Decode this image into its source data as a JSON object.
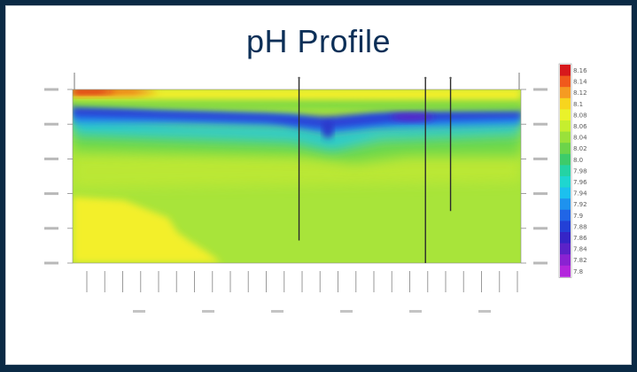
{
  "chart_data": {
    "type": "heatmap",
    "title": "pH Profile",
    "colorbar": {
      "labels": [
        "8.16",
        "8.14",
        "8.12",
        "8.1",
        "8.08",
        "8.06",
        "8.04",
        "8.02",
        "8.0",
        "7.98",
        "7.96",
        "7.94",
        "7.92",
        "7.9",
        "7.88",
        "7.86",
        "7.84",
        "7.82",
        "7.8"
      ],
      "min": 7.8,
      "max": 8.16,
      "colors": [
        "#d7191c",
        "#f05a1c",
        "#f59b22",
        "#f7d51e",
        "#eaf22a",
        "#c6ee2e",
        "#9ae13a",
        "#6cd44a",
        "#3dcb6a",
        "#24d3a4",
        "#1ed6d0",
        "#1cc0ee",
        "#1e92ee",
        "#2065e6",
        "#2340d6",
        "#3525c6",
        "#5b22c8",
        "#8a22d2",
        "#b326dc"
      ]
    },
    "profiles": [
      {
        "x_frac": 0.505,
        "depth_frac": 0.87
      },
      {
        "x_frac": 0.787,
        "depth_frac": 1.0
      },
      {
        "x_frac": 0.843,
        "depth_frac": 0.7
      }
    ],
    "x_tick_count": 25,
    "y_tick_count": 6,
    "x_label_count": 6,
    "palette": {
      "base": "#a8e43a",
      "lower_left": "#f3ef2a",
      "surface": "#f6ef2c",
      "surface_hot": "#f06418",
      "cold_band": "#2a3fd8",
      "mid_band": "#27c9d8"
    }
  }
}
